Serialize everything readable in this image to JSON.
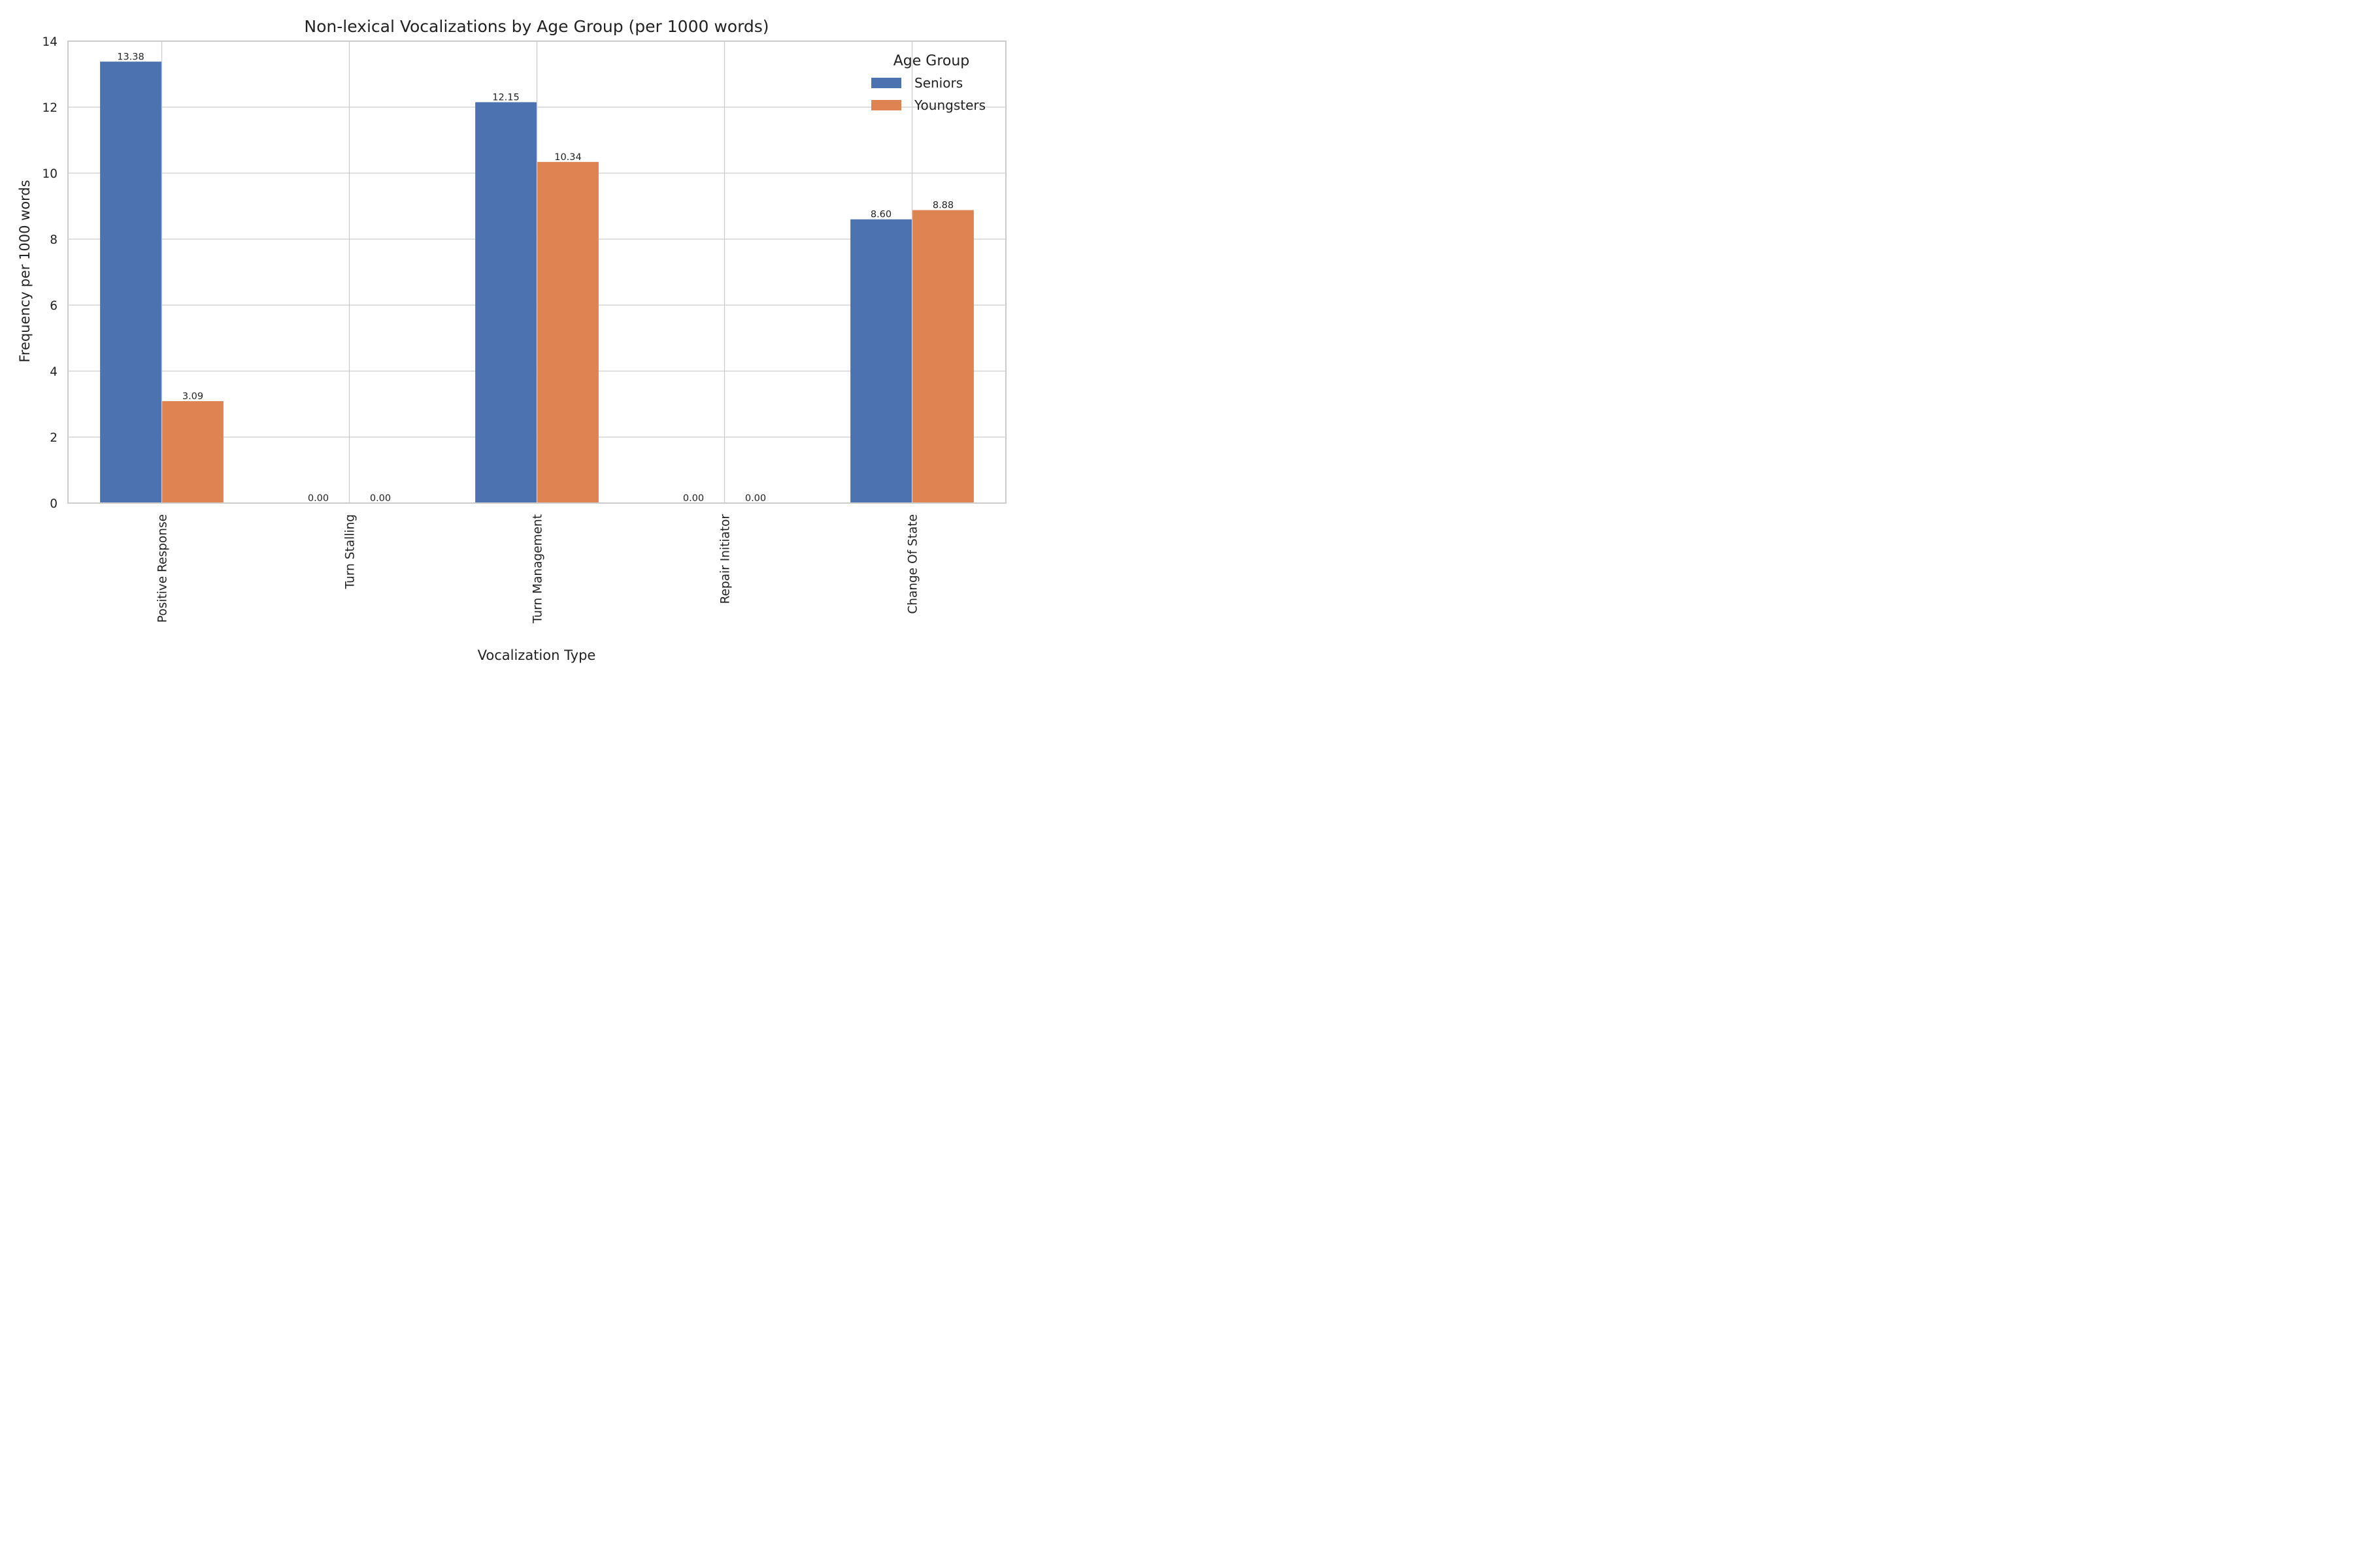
{
  "chart_data": {
    "type": "bar",
    "title": "Non-lexical Vocalizations by Age Group (per 1000 words)",
    "xlabel": "Vocalization Type",
    "ylabel": "Frequency per 1000 words",
    "ylim": [
      0,
      14
    ],
    "yticks": [
      0,
      2,
      4,
      6,
      8,
      10,
      12,
      14
    ],
    "ytick_labels": [
      "0",
      "2",
      "4",
      "6",
      "8",
      "10",
      "12",
      "14"
    ],
    "categories": [
      "Positive Response",
      "Turn Stalling",
      "Turn Management",
      "Repair Initiator",
      "Change Of State"
    ],
    "series": [
      {
        "name": "Seniors",
        "color": "#4c72b0",
        "values": [
          13.38,
          0.0,
          12.15,
          0.0,
          8.6
        ],
        "labels": [
          "13.38",
          "0.00",
          "12.15",
          "0.00",
          "8.60"
        ]
      },
      {
        "name": "Youngsters",
        "color": "#dd8452",
        "values": [
          3.09,
          0.0,
          10.34,
          0.0,
          8.88
        ],
        "labels": [
          "3.09",
          "0.00",
          "10.34",
          "0.00",
          "8.88"
        ]
      }
    ],
    "legend": {
      "title": "Age Group",
      "position": "top-right"
    },
    "grid": true
  }
}
